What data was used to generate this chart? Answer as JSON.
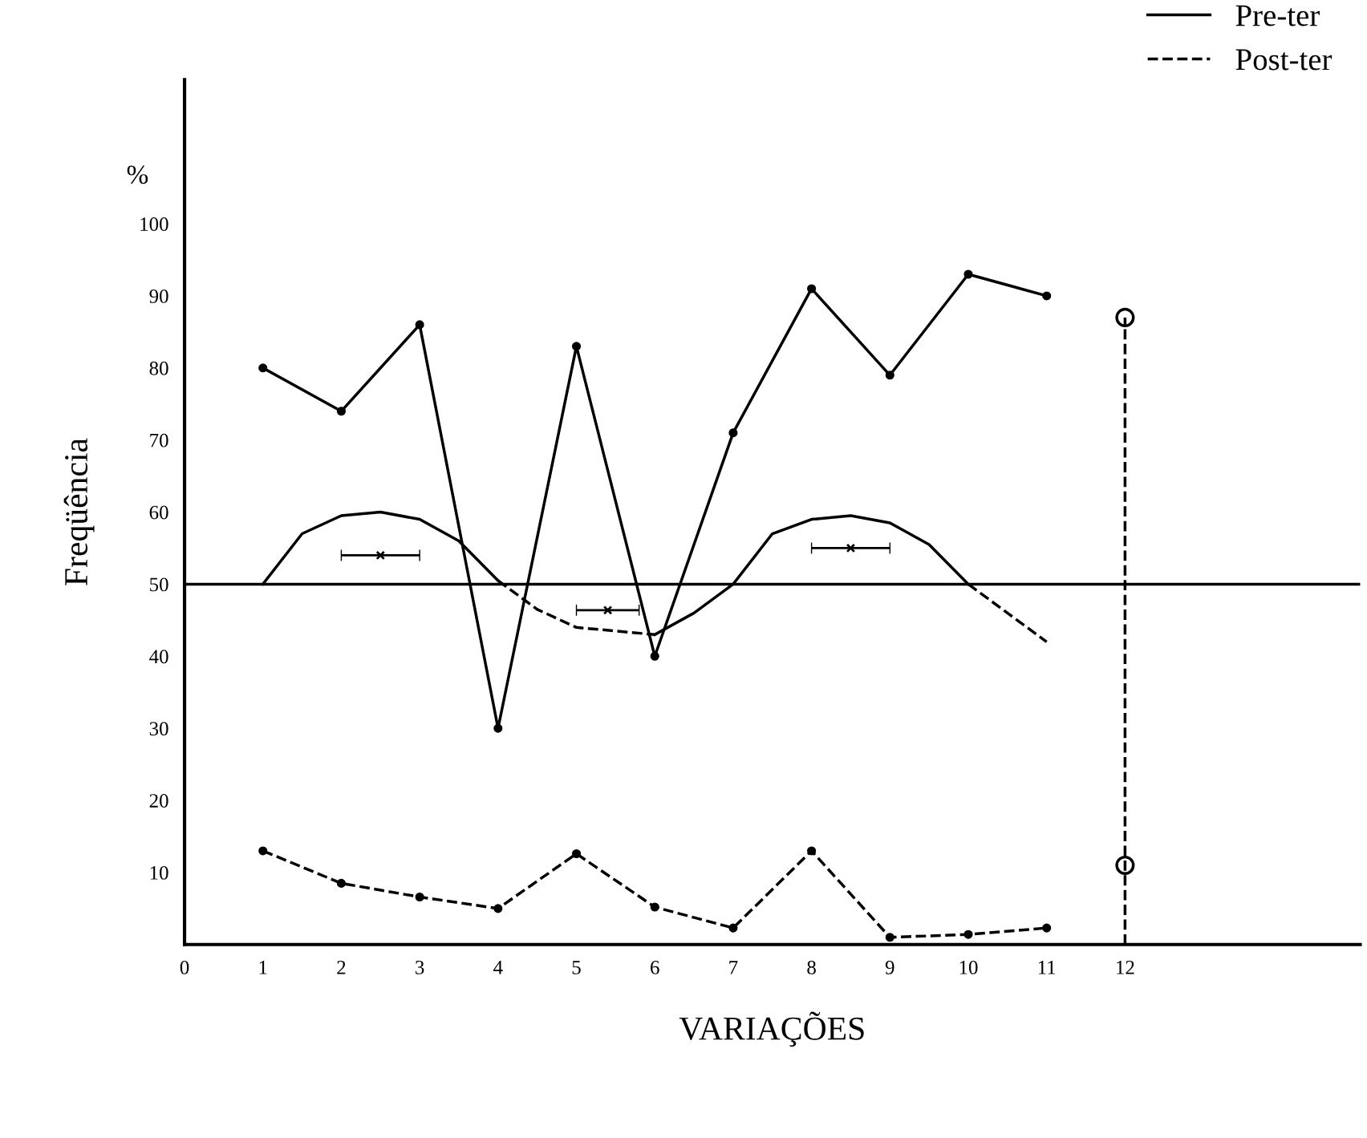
{
  "chart_data": {
    "type": "line",
    "xlabel": "VARIAÇÕES",
    "ylabel": "Freqüência",
    "annotations": [
      "%"
    ],
    "xlim": [
      0,
      15
    ],
    "xticks": [
      0,
      1,
      2,
      3,
      4,
      5,
      6,
      7,
      8,
      9,
      10,
      11,
      12
    ],
    "ylim": [
      0,
      120
    ],
    "yticks": [
      10,
      20,
      30,
      40,
      50,
      60,
      70,
      80,
      90,
      100
    ],
    "grid": false,
    "legend": "top right",
    "ref_lines": [
      {
        "axis": "y",
        "value": 50,
        "color": "#000000",
        "line_style": "solid"
      }
    ],
    "series": [
      {
        "name": "Pre-ter",
        "color": "#000000",
        "marker": "circle",
        "line_style": "solid",
        "x": [
          1,
          2,
          3,
          4,
          5,
          6,
          7,
          8,
          9,
          10,
          11
        ],
        "values": [
          80,
          74,
          86,
          30,
          83,
          40,
          71,
          91,
          79,
          93,
          90
        ]
      },
      {
        "name": "Post-ter",
        "color": "#000000",
        "marker": "circle",
        "line_style": "dashed",
        "x": [
          1,
          2,
          3,
          4,
          5,
          6,
          7,
          8,
          9,
          10,
          11
        ],
        "values": [
          13,
          8.5,
          6.6,
          5,
          12.6,
          5.2,
          2.3,
          13,
          1,
          1.4,
          2.3
        ]
      },
      {
        "type": "line",
        "color": "#000000",
        "marker": "none",
        "line_style": "solid",
        "x": [
          1,
          1.5,
          2,
          2.5,
          3,
          3.5,
          4
        ],
        "values": [
          50,
          57,
          59.5,
          60,
          59,
          56,
          50.5
        ]
      },
      {
        "type": "line",
        "color": "#000000",
        "marker": "none",
        "line_style": "dashed",
        "x": [
          4,
          4.5,
          5,
          5.5,
          6
        ],
        "values": [
          50.5,
          46.5,
          44,
          43.5,
          43
        ]
      },
      {
        "type": "line",
        "color": "#000000",
        "marker": "none",
        "line_style": "solid",
        "x": [
          6,
          6.5,
          7,
          7.5,
          8,
          8.5,
          9,
          9.5,
          10
        ],
        "values": [
          43,
          46,
          50,
          57,
          59,
          59.5,
          58.5,
          55.5,
          50
        ]
      },
      {
        "type": "line",
        "color": "#000000",
        "marker": "none",
        "line_style": "dashed",
        "x": [
          10,
          10.5,
          11
        ],
        "values": [
          50,
          46,
          42
        ]
      },
      {
        "type": "scatter",
        "color": "#000000",
        "marker": "cross",
        "x": [
          2.5,
          5.4,
          8.5
        ],
        "values": [
          54,
          46.4,
          55
        ],
        "xerrors": [
          0.5,
          0.4,
          0.5
        ]
      },
      {
        "type": "line",
        "color": "#000000",
        "marker": "none",
        "line_style": "dashed",
        "x": [
          12,
          12,
          12
        ],
        "values": [
          0,
          11,
          87
        ]
      },
      {
        "type": "scatter",
        "color": "#000000",
        "marker": "circle",
        "x": [
          12,
          12
        ],
        "values": [
          11,
          87
        ]
      }
    ]
  }
}
